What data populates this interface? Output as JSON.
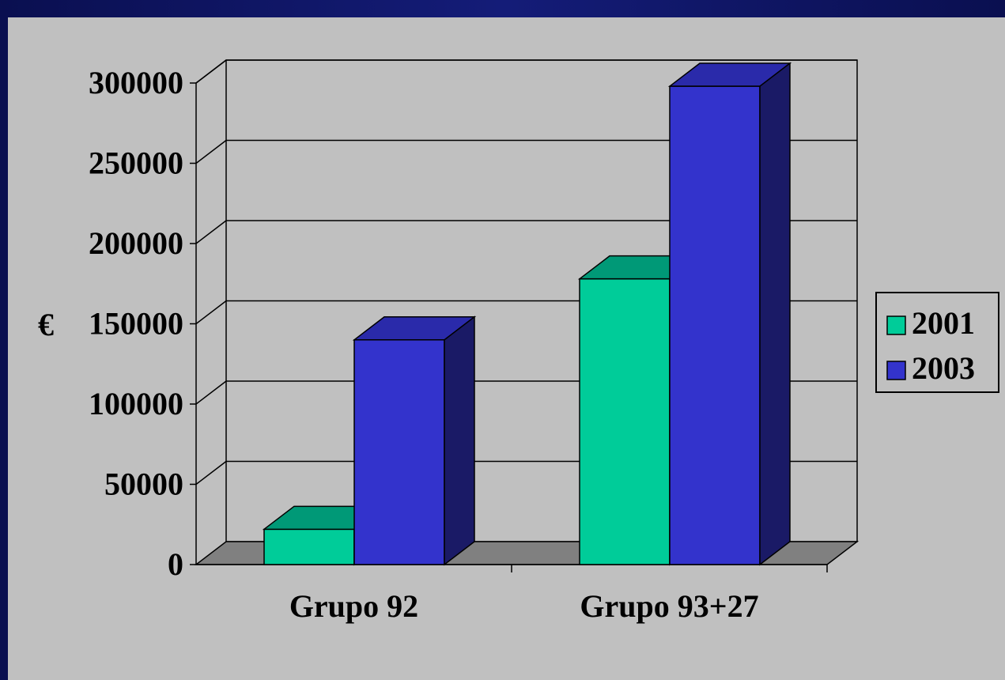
{
  "chart_data": {
    "type": "bar",
    "title": "",
    "xlabel": "",
    "ylabel": "€",
    "categories": [
      "Grupo 92",
      "Grupo 93+27"
    ],
    "series": [
      {
        "name": "2001",
        "values": [
          22000,
          178000
        ],
        "color": "#00cc99",
        "top_color": "#009977",
        "side_color": "#008866"
      },
      {
        "name": "2003",
        "values": [
          140000,
          298000
        ],
        "color": "#3333cc",
        "top_color": "#2a2aaa",
        "side_color": "#1a1a66"
      }
    ],
    "ylim": [
      0,
      300000
    ],
    "yticks": [
      "0",
      "50000",
      "100000",
      "150000",
      "200000",
      "250000",
      "300000"
    ],
    "grid": true,
    "legend_position": "right",
    "three_d": true
  },
  "colors": {
    "panel_bg": "#c0c0c0",
    "floor": "#808080",
    "slide_bg": "#0b1055"
  }
}
